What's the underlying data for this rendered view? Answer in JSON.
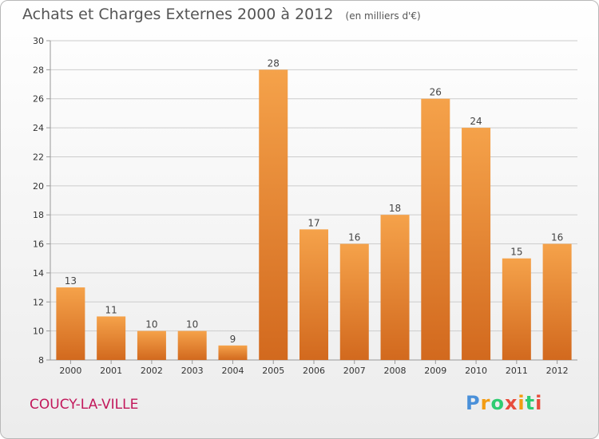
{
  "header": {
    "title": "Achats et Charges Externes 2000 à 2012",
    "unit": "(en milliers d'€)"
  },
  "footer": {
    "town": "COUCY-LA-VILLE",
    "logo_letters": [
      "P",
      "r",
      "o",
      "x",
      "i",
      "t",
      "i"
    ],
    "logo_colors": [
      "#4a90d9",
      "#f39c12",
      "#2ecc71",
      "#e74c3c",
      "#f39c12",
      "#2ecc71",
      "#e74c3c"
    ]
  },
  "colors": {
    "bar_top": "#f5a24a",
    "bar_bottom": "#d2691e",
    "grid": "#cccccc",
    "title": "#555555",
    "town": "#c2185b"
  },
  "chart_data": {
    "type": "bar",
    "title": "Achats et Charges Externes 2000 à 2012",
    "subtitle": "(en milliers d'€)",
    "xlabel": "",
    "ylabel": "",
    "categories": [
      "2000",
      "2001",
      "2002",
      "2003",
      "2004",
      "2005",
      "2006",
      "2007",
      "2008",
      "2009",
      "2010",
      "2011",
      "2012"
    ],
    "values": [
      13,
      11,
      10,
      10,
      9,
      28,
      17,
      16,
      18,
      26,
      24,
      15,
      16
    ],
    "ylim": [
      8,
      30
    ],
    "yticks": [
      8,
      10,
      12,
      14,
      16,
      18,
      20,
      22,
      24,
      26,
      28,
      30
    ],
    "grid": true,
    "legend": "none"
  }
}
